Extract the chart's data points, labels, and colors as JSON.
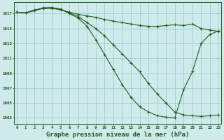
{
  "background_color": "#ceeaea",
  "grid_color": "#9ecece",
  "line_color": "#1e5e1e",
  "xlabel": "Graphe pression niveau de la mer (hPa)",
  "xlabel_fontsize": 6.5,
  "ytick_labels": [
    1003,
    1005,
    1007,
    1009,
    1011,
    1013,
    1015,
    1017
  ],
  "xtick_labels": [
    0,
    1,
    2,
    3,
    4,
    5,
    6,
    7,
    8,
    9,
    10,
    11,
    12,
    13,
    14,
    15,
    16,
    17,
    18,
    19,
    20,
    21,
    22,
    23
  ],
  "ylim": [
    1002.2,
    1018.5
  ],
  "xlim": [
    -0.3,
    23.3
  ],
  "line1_x": [
    0,
    1,
    2,
    3,
    4,
    5,
    6,
    7,
    8,
    9,
    10,
    11,
    12,
    13,
    14,
    15,
    16,
    17,
    18,
    19,
    20,
    21,
    22,
    23
  ],
  "line1_y": [
    1017.2,
    1017.1,
    1017.5,
    1017.7,
    1017.7,
    1017.5,
    1017.2,
    1016.9,
    1016.7,
    1016.5,
    1016.2,
    1016.0,
    1015.8,
    1015.6,
    1015.4,
    1015.3,
    1015.3,
    1015.4,
    1015.5,
    1015.4,
    1015.6,
    1015.0,
    1014.8,
    1014.6
  ],
  "line2_x": [
    0,
    1,
    2,
    3,
    4,
    5,
    6,
    7,
    8,
    9,
    10,
    11,
    12,
    13,
    14,
    15,
    16,
    17,
    18,
    19,
    20,
    21,
    22,
    23
  ],
  "line2_y": [
    1017.2,
    1017.1,
    1017.4,
    1017.8,
    1017.8,
    1017.6,
    1017.1,
    1016.6,
    1015.8,
    1015.0,
    1014.0,
    1012.8,
    1011.6,
    1010.4,
    1009.2,
    1007.6,
    1006.2,
    1005.0,
    1003.8,
    1003.4,
    1003.3,
    1003.2,
    1003.3,
    1003.4
  ],
  "line3_x": [
    0,
    1,
    2,
    3,
    4,
    5,
    6,
    7,
    8,
    9,
    10,
    11,
    12,
    13,
    14,
    15,
    16,
    17,
    18,
    19,
    20,
    21,
    22,
    23
  ],
  "line3_y": [
    1017.2,
    1017.1,
    1017.4,
    1017.7,
    1017.8,
    1017.6,
    1017.0,
    1016.4,
    1015.3,
    1013.5,
    1011.5,
    1009.5,
    1007.5,
    1005.8,
    1004.5,
    1003.8,
    1003.3,
    1003.1,
    1003.0,
    1006.8,
    1009.2,
    1013.0,
    1014.2,
    1014.7
  ]
}
